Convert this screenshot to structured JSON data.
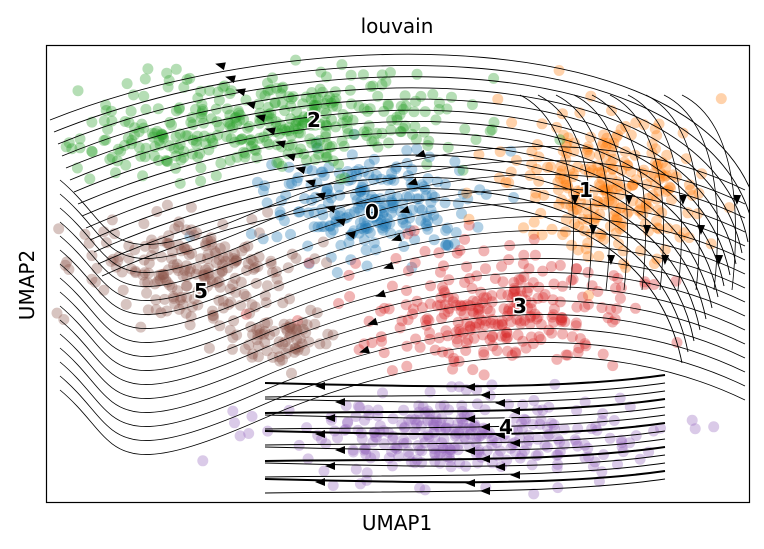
{
  "chart_data": {
    "type": "scatter",
    "title": "louvain",
    "xlabel": "UMAP1",
    "ylabel": "UMAP2",
    "ticks": "none",
    "grid": false,
    "legend": "on data",
    "overlay": "velocity streamlines with arrowheads",
    "clusters": [
      {
        "label": "0",
        "color": "#1f77b4"
      },
      {
        "label": "1",
        "color": "#ff7f0e"
      },
      {
        "label": "2",
        "color": "#2ca02c"
      },
      {
        "label": "3",
        "color": "#d62728"
      },
      {
        "label": "4",
        "color": "#9467bd"
      },
      {
        "label": "5",
        "color": "#8c564b"
      }
    ]
  }
}
